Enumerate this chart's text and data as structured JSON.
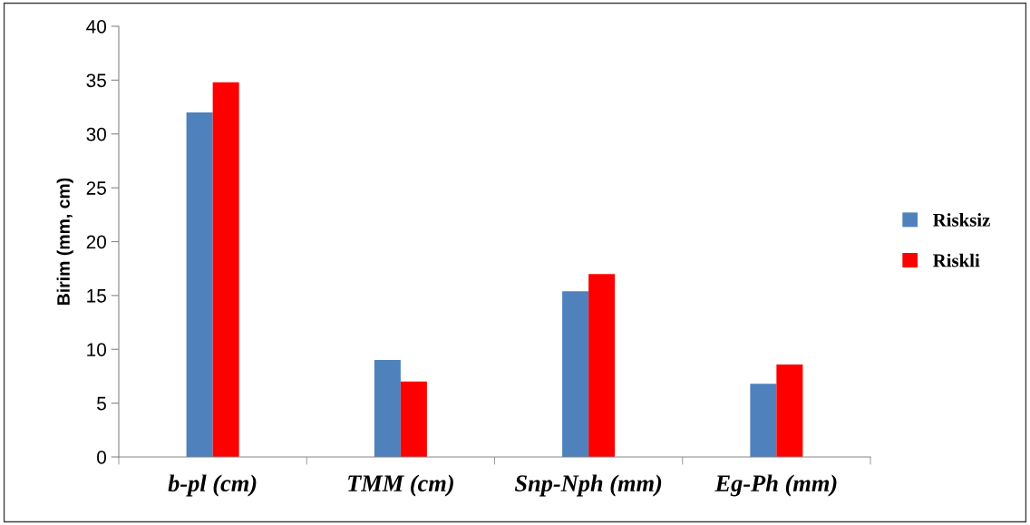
{
  "chart_data": {
    "type": "bar",
    "ylabel": "Birim (mm, cm)",
    "categories": [
      "b-pl (cm)",
      "TMM (cm)",
      "Snp-Nph (mm)",
      "Eg-Ph (mm)"
    ],
    "series": [
      {
        "name": "Risksiz",
        "color": "#4f81bd",
        "values": [
          32.0,
          9.0,
          15.4,
          6.8
        ]
      },
      {
        "name": "Riskli",
        "color": "#ff0000",
        "values": [
          34.8,
          7.0,
          17.0,
          8.6
        ]
      }
    ],
    "ylim": [
      0,
      40
    ],
    "yticks": [
      0,
      5,
      10,
      15,
      20,
      25,
      30,
      35,
      40
    ],
    "grid": false,
    "legend": "right"
  }
}
